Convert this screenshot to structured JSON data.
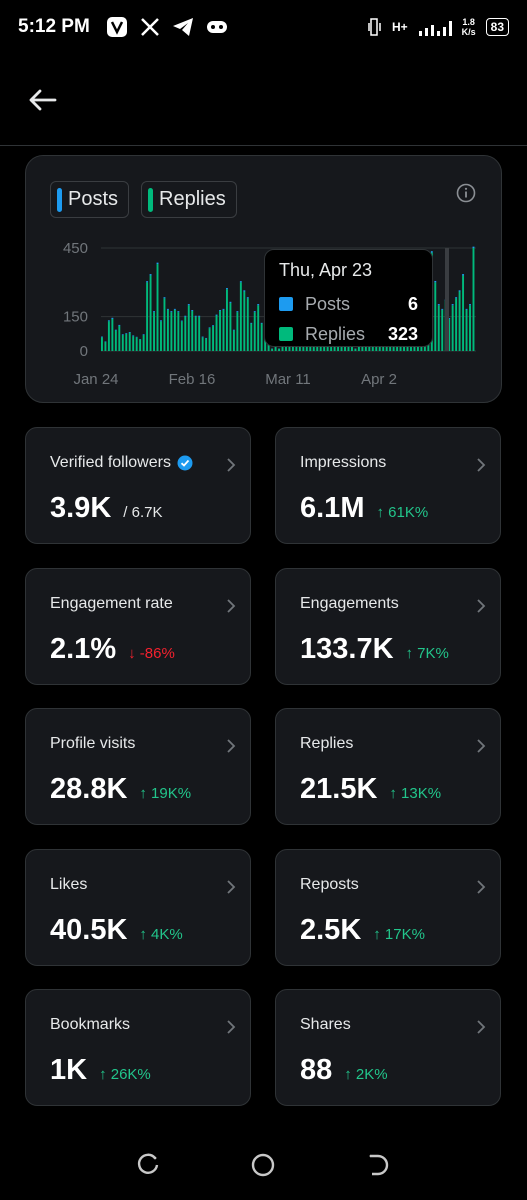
{
  "status_bar": {
    "time": "5:12 PM",
    "network": "H+",
    "speed_value": "1.8",
    "speed_unit": "K/s",
    "battery": "83",
    "icons": [
      "v-app-icon",
      "x-app-icon",
      "telegram-icon",
      "gamepad-icon",
      "vibrate-icon",
      "signal-icon"
    ]
  },
  "header": {
    "back_icon": "arrow-left-icon"
  },
  "chart": {
    "legend": [
      {
        "label": "Posts",
        "color": "#1d9bf0"
      },
      {
        "label": "Replies",
        "color": "#00ba7c"
      }
    ],
    "tooltip": {
      "title": "Thu, Apr 23",
      "rows": [
        {
          "name": "Posts",
          "value": "6",
          "color": "#1d9bf0"
        },
        {
          "name": "Replies",
          "value": "323",
          "color": "#00ba7c"
        }
      ]
    }
  },
  "chart_data": {
    "type": "bar",
    "x_ticks": [
      "Jan 24",
      "Feb 16",
      "Mar 11",
      "Apr 2"
    ],
    "y_ticks": [
      "450",
      "150",
      "0"
    ],
    "ylim": [
      0,
      450
    ],
    "grid": true,
    "legend_position": "top-left",
    "series": [
      {
        "name": "Replies",
        "color": "#00ba7c",
        "values": [
          60,
          40,
          130,
          140,
          90,
          110,
          70,
          75,
          80,
          65,
          60,
          50,
          70,
          300,
          330,
          170,
          380,
          130,
          230,
          180,
          170,
          180,
          170,
          130,
          150,
          200,
          175,
          150,
          150,
          60,
          55,
          100,
          110,
          155,
          175,
          180,
          270,
          210,
          90,
          170,
          300,
          260,
          230,
          120,
          170,
          200,
          120,
          60,
          50,
          10,
          20,
          10,
          30,
          50,
          60,
          40,
          80,
          110,
          160,
          170,
          110,
          120,
          160,
          50,
          45,
          50,
          45,
          40,
          30,
          40,
          30,
          30,
          20,
          10,
          30,
          80,
          90,
          110,
          130,
          150,
          150,
          200,
          230,
          80,
          40,
          160,
          170,
          200,
          150,
          120,
          180,
          220,
          250,
          270,
          330,
          430,
          300,
          200,
          180,
          220,
          140,
          200,
          230,
          260,
          330,
          180,
          200,
          450
        ]
      },
      {
        "name": "Posts",
        "color": "#1d9bf0",
        "values": [
          3,
          2,
          4,
          5,
          3,
          4,
          3,
          3,
          3,
          3,
          2,
          2,
          3,
          5,
          6,
          4,
          6,
          4,
          5,
          4,
          4,
          4,
          4,
          3,
          4,
          5,
          4,
          4,
          4,
          3,
          2,
          3,
          3,
          4,
          4,
          4,
          5,
          5,
          3,
          4,
          5,
          5,
          5,
          3,
          4,
          5,
          3,
          2,
          2,
          1,
          1,
          1,
          1,
          2,
          2,
          2,
          2,
          3,
          4,
          4,
          3,
          3,
          4,
          2,
          2,
          2,
          2,
          2,
          1,
          2,
          1,
          1,
          1,
          1,
          1,
          2,
          3,
          3,
          4,
          4,
          4,
          5,
          5,
          3,
          2,
          4,
          4,
          5,
          4,
          3,
          4,
          5,
          5,
          5,
          6,
          6,
          6,
          5,
          4,
          5,
          4,
          5,
          5,
          5,
          6,
          4,
          5,
          6
        ]
      }
    ]
  },
  "metrics": [
    {
      "label": "Verified followers",
      "value": "3.9K",
      "sub": "/ 6.7K",
      "change": "",
      "dir": "",
      "verified": true
    },
    {
      "label": "Impressions",
      "value": "6.1M",
      "sub": "",
      "change": "↑ 61K%",
      "dir": "up"
    },
    {
      "label": "Engagement rate",
      "value": "2.1%",
      "sub": "",
      "change": "↓ -86%",
      "dir": "down"
    },
    {
      "label": "Engagements",
      "value": "133.7K",
      "sub": "",
      "change": "↑ 7K%",
      "dir": "up"
    },
    {
      "label": "Profile visits",
      "value": "28.8K",
      "sub": "",
      "change": "↑ 19K%",
      "dir": "up"
    },
    {
      "label": "Replies",
      "value": "21.5K",
      "sub": "",
      "change": "↑ 13K%",
      "dir": "up"
    },
    {
      "label": "Likes",
      "value": "40.5K",
      "sub": "",
      "change": "↑ 4K%",
      "dir": "up"
    },
    {
      "label": "Reposts",
      "value": "2.5K",
      "sub": "",
      "change": "↑ 17K%",
      "dir": "up"
    },
    {
      "label": "Bookmarks",
      "value": "1K",
      "sub": "",
      "change": "↑ 26K%",
      "dir": "up"
    },
    {
      "label": "Shares",
      "value": "88",
      "sub": "",
      "change": "↑ 2K%",
      "dir": "up"
    }
  ],
  "nav": [
    "recents-icon",
    "home-circle-icon",
    "back-nav-icon"
  ]
}
